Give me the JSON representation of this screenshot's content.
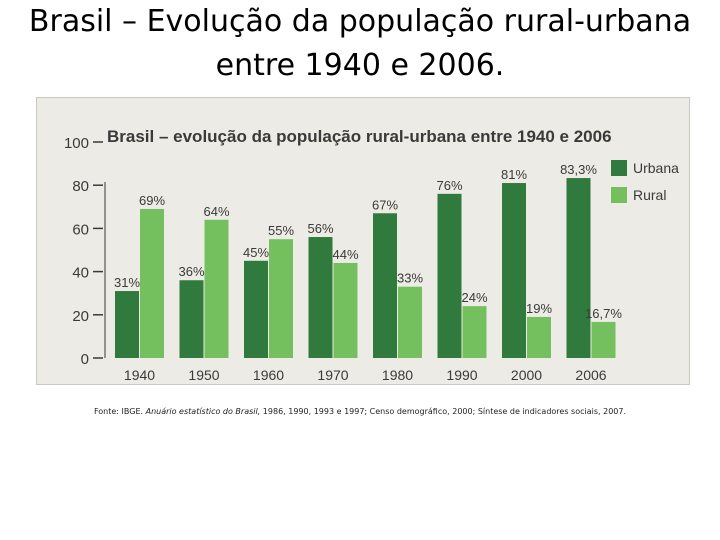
{
  "slide_title": "Brasil – Evolução da população rural-urbana entre 1940 e 2006.",
  "source": {
    "prefix": "Fonte: IBGE. ",
    "publication": "Anuário estatístico do Brasil,",
    "suffix": " 1986, 1990, 1993 e 1997; Censo demográfico, 2000; Síntese de indicadores sociais, 2007."
  },
  "colors": {
    "urbana": "#2f7a3c",
    "rural": "#74c05f",
    "text": "#3a3a3a"
  },
  "chart_data": {
    "type": "bar",
    "title": "Brasil – evolução da população rural-urbana entre 1940 e 2006",
    "categories": [
      "1940",
      "1950",
      "1960",
      "1970",
      "1980",
      "1990",
      "2000",
      "2006"
    ],
    "series": [
      {
        "name": "Urbana",
        "values": [
          31,
          36,
          45,
          56,
          67,
          76,
          81,
          83.3
        ],
        "labels": [
          "31%",
          "36%",
          "45%",
          "56%",
          "67%",
          "76%",
          "81%",
          "83,3%"
        ]
      },
      {
        "name": "Rural",
        "values": [
          69,
          64,
          55,
          44,
          33,
          24,
          19,
          16.7
        ],
        "labels": [
          "69%",
          "64%",
          "55%",
          "44%",
          "33%",
          "24%",
          "19%",
          "16,7%"
        ]
      }
    ],
    "yticks": [
      "0",
      "20",
      "40",
      "60",
      "80",
      "100"
    ],
    "ylim": [
      0,
      100
    ],
    "xlabel": "",
    "ylabel": "",
    "legend_position": "top-right",
    "grid": false
  }
}
